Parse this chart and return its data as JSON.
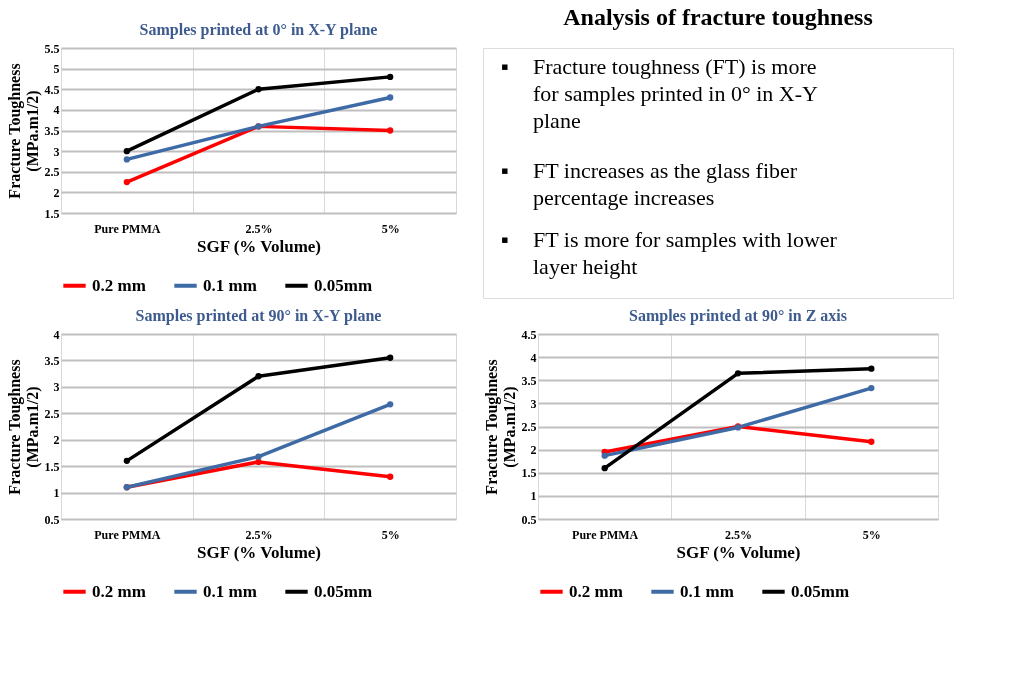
{
  "chart_data": [
    {
      "type": "line",
      "title": "Samples printed at 0° in X-Y plane",
      "xlabel": "SGF (% Volume)",
      "ylabel": "Fracture Toughness (MPa.m1/2)",
      "categories": [
        "Pure PMMA",
        "2.5%",
        "5%"
      ],
      "ylim": [
        1.5,
        5.5
      ],
      "yticks": [
        1.5,
        2,
        2.5,
        3,
        3.5,
        4,
        4.5,
        5,
        5.5
      ],
      "grid": true,
      "legend": "bottom",
      "marker": "circle",
      "line_style": "solid",
      "series": [
        {
          "name": "0.2 mm",
          "color": "#ff0000",
          "values": [
            2.25,
            3.6,
            3.5
          ]
        },
        {
          "name": "0.1 mm",
          "color": "#3e6aa6",
          "values": [
            2.8,
            3.6,
            4.3
          ]
        },
        {
          "name": "0.05mm",
          "color": "#000000",
          "values": [
            3.0,
            4.5,
            4.8
          ]
        }
      ]
    },
    {
      "type": "other",
      "title": "Analysis of fracture toughness",
      "annotations": [
        "▪ Fracture toughness (FT) is more for samples printed in 0° in X-Y plane",
        "▪ FT increases as the glass fiber percentage increases",
        "▪ FT is more for samples with lower layer height"
      ]
    },
    {
      "type": "line",
      "title": "Samples printed at 90° in X-Y plane",
      "xlabel": "SGF (% Volume)",
      "ylabel": "Fracture Toughness (MPa.m1/2)",
      "categories": [
        "Pure PMMA",
        "2.5%",
        "5%"
      ],
      "ylim": [
        0.5,
        4
      ],
      "yticks": [
        0.5,
        1,
        1.5,
        2,
        2.5,
        3,
        3.5,
        4
      ],
      "grid": true,
      "legend": "bottom",
      "marker": "circle",
      "line_style": "solid",
      "series": [
        {
          "name": "0.2 mm",
          "color": "#ff0000",
          "values": [
            1.1,
            1.58,
            1.3
          ]
        },
        {
          "name": "0.1 mm",
          "color": "#3e6aa6",
          "values": [
            1.1,
            1.68,
            2.67
          ]
        },
        {
          "name": "0.05mm",
          "color": "#000000",
          "values": [
            1.6,
            3.2,
            3.55
          ]
        }
      ]
    },
    {
      "type": "line",
      "title": "Samples printed at 90° in Z axis",
      "xlabel": "SGF (% Volume)",
      "ylabel": "Fracture Toughness (MPa.m1/2)",
      "categories": [
        "Pure PMMA",
        "2.5%",
        "5%"
      ],
      "ylim": [
        0.5,
        4.5
      ],
      "yticks": [
        0.5,
        1,
        1.5,
        2,
        2.5,
        3,
        3.5,
        4,
        4.5
      ],
      "grid": true,
      "legend": "bottom",
      "marker": "circle",
      "line_style": "solid",
      "series": [
        {
          "name": "0.2 mm",
          "color": "#ff0000",
          "values": [
            1.95,
            2.5,
            2.17
          ]
        },
        {
          "name": "0.1 mm",
          "color": "#3e6aa6",
          "values": [
            1.87,
            2.48,
            3.33
          ]
        },
        {
          "name": "0.05mm",
          "color": "#000000",
          "values": [
            1.6,
            3.65,
            3.75
          ]
        }
      ]
    }
  ]
}
